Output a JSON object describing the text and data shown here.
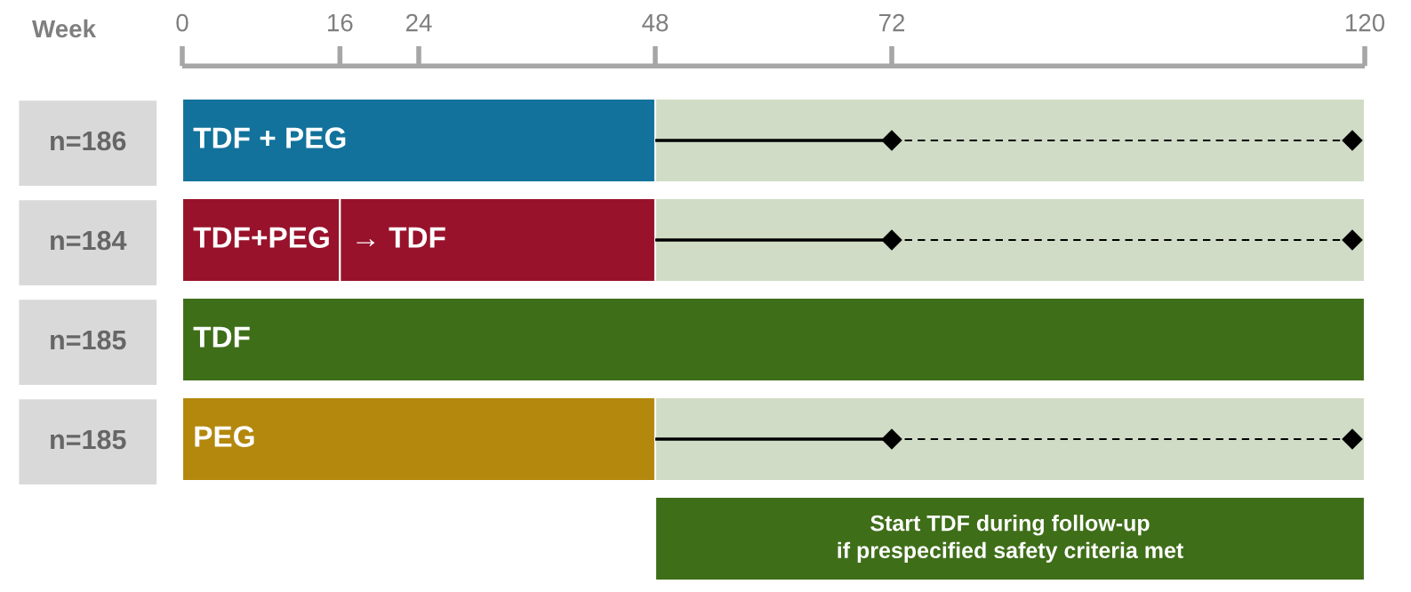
{
  "chart_data": {
    "type": "bar",
    "orientation": "horizontal",
    "xlabel": "Week",
    "categories": [
      "n=186",
      "n=184",
      "n=185",
      "n=185",
      null
    ],
    "xlim": [
      0,
      120
    ],
    "xticks": [
      0,
      16,
      24,
      48,
      72,
      120
    ],
    "grid": false,
    "legend": false,
    "series": [
      {
        "base": [
          0,
          0,
          0,
          0,
          null
        ],
        "values": [
          48,
          16,
          120,
          48,
          null
        ],
        "colors": [
          "#12729b",
          "#98122b",
          "#3f6e19",
          "#b3880d",
          null
        ],
        "value_labels": [
          "TDF + PEG",
          "TDF+PEG",
          "TDF",
          "PEG",
          null
        ]
      },
      {
        "base": [
          null,
          16,
          null,
          null,
          null
        ],
        "values": [
          null,
          32,
          null,
          null,
          null
        ],
        "color": "#98122b",
        "value_labels": [
          null,
          "→ TDF",
          null,
          null,
          null
        ]
      },
      {
        "base": [
          48,
          48,
          null,
          48,
          null
        ],
        "values": [
          72,
          72,
          null,
          72,
          null
        ],
        "color": "#d0dcc6"
      },
      {
        "base": [
          null,
          null,
          null,
          null,
          48
        ],
        "values": [
          null,
          null,
          null,
          null,
          72
        ],
        "color": "#3f6e19",
        "value_labels": [
          null,
          null,
          null,
          null,
          "Start TDF during follow-up\nif prespecified safety criteria met"
        ]
      }
    ]
  }
}
